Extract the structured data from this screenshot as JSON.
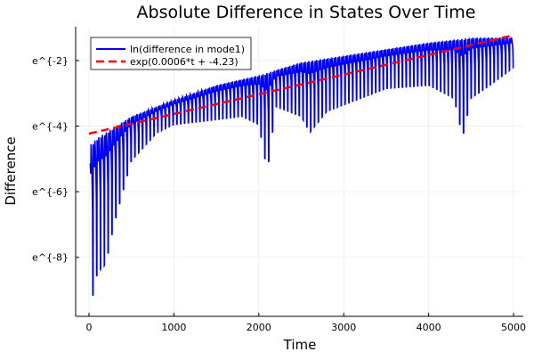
{
  "chart_data": {
    "type": "line",
    "title": "Absolute Difference in States Over Time",
    "xlabel": "Time",
    "ylabel": "Difference",
    "xlim": [
      -157,
      5115
    ],
    "ylim_ln": [
      -9.8,
      -0.97
    ],
    "yscale": "log (natural), values given as ln(difference)",
    "xticks": [
      0,
      1000,
      2000,
      3000,
      4000,
      5000
    ],
    "xtick_labels": [
      "0",
      "1000",
      "2000",
      "3000",
      "4000",
      "5000"
    ],
    "yticks_ln": [
      -2,
      -4,
      -6,
      -8
    ],
    "ytick_labels": [
      "e^{-2}",
      "e^{-4}",
      "e^{-6}",
      "e^{-8}"
    ],
    "grid": true,
    "legend_placement": "top-left",
    "series": [
      {
        "name": "ln(difference in mode1)",
        "color": "#0000ff",
        "style": "solid, rapidly oscillating between envelopes",
        "upper_envelope": [
          [
            0,
            -4.6
          ],
          [
            100,
            -4.35
          ],
          [
            500,
            -3.7
          ],
          [
            1000,
            -3.2
          ],
          [
            1500,
            -2.75
          ],
          [
            2000,
            -2.45
          ],
          [
            2500,
            -2.05
          ],
          [
            3000,
            -1.85
          ],
          [
            3500,
            -1.65
          ],
          [
            4000,
            -1.45
          ],
          [
            4500,
            -1.3
          ],
          [
            5000,
            -1.3
          ]
        ],
        "lower_envelope": [
          [
            20,
            -9.5
          ],
          [
            100,
            -8.45
          ],
          [
            200,
            -8.2
          ],
          [
            300,
            -6.95
          ],
          [
            500,
            -5.05
          ],
          [
            800,
            -4.2
          ],
          [
            1000,
            -3.95
          ],
          [
            1500,
            -3.8
          ],
          [
            1800,
            -3.7
          ],
          [
            2000,
            -3.95
          ],
          [
            2100,
            -5.4
          ],
          [
            2200,
            -3.4
          ],
          [
            2500,
            -3.7
          ],
          [
            2600,
            -4.2
          ],
          [
            2800,
            -3.55
          ],
          [
            3000,
            -3.35
          ],
          [
            3500,
            -2.85
          ],
          [
            4000,
            -2.75
          ],
          [
            4300,
            -3.15
          ],
          [
            4400,
            -4.35
          ],
          [
            4500,
            -3.15
          ],
          [
            4800,
            -2.6
          ],
          [
            5000,
            -2.2
          ]
        ]
      },
      {
        "name": "exp(0.0006*t + -4.23)",
        "color": "#ff0000",
        "style": "dashed",
        "slope": 0.0006,
        "intercept": -4.23,
        "x_range": [
          0,
          5000
        ]
      }
    ]
  }
}
